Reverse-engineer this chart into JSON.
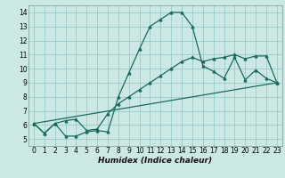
{
  "xlabel": "Humidex (Indice chaleur)",
  "bg_color": "#cce8e4",
  "grid_color": "#99ccc4",
  "line_color": "#1a6b5a",
  "xlim": [
    -0.5,
    23.5
  ],
  "ylim": [
    4.5,
    14.5
  ],
  "xticks": [
    0,
    1,
    2,
    3,
    4,
    5,
    6,
    7,
    8,
    9,
    10,
    11,
    12,
    13,
    14,
    15,
    16,
    17,
    18,
    19,
    20,
    21,
    22,
    23
  ],
  "yticks": [
    5,
    6,
    7,
    8,
    9,
    10,
    11,
    12,
    13,
    14
  ],
  "line1_x": [
    0,
    1,
    2,
    3,
    4,
    5,
    6,
    7,
    8,
    9,
    10,
    11,
    12,
    13,
    14,
    15,
    16,
    17,
    18,
    19,
    20,
    21,
    22,
    23
  ],
  "line1_y": [
    6.1,
    5.4,
    6.1,
    5.2,
    5.2,
    5.5,
    5.6,
    5.5,
    8.0,
    9.7,
    11.4,
    13.0,
    13.5,
    14.0,
    14.0,
    13.0,
    10.2,
    9.8,
    9.3,
    10.8,
    9.2,
    9.9,
    9.3,
    9.0
  ],
  "line2_x": [
    0,
    1,
    2,
    3,
    4,
    5,
    6,
    7,
    8,
    9,
    10,
    11,
    12,
    13,
    14,
    15,
    16,
    17,
    18,
    19,
    20,
    21,
    22,
    23
  ],
  "line2_y": [
    6.1,
    5.4,
    6.1,
    6.3,
    6.4,
    5.6,
    5.7,
    6.8,
    7.5,
    8.0,
    8.5,
    9.0,
    9.5,
    10.0,
    10.5,
    10.8,
    10.5,
    10.7,
    10.8,
    11.0,
    10.7,
    10.9,
    10.9,
    9.0
  ],
  "line3_x": [
    0,
    23
  ],
  "line3_y": [
    6.1,
    9.0
  ]
}
